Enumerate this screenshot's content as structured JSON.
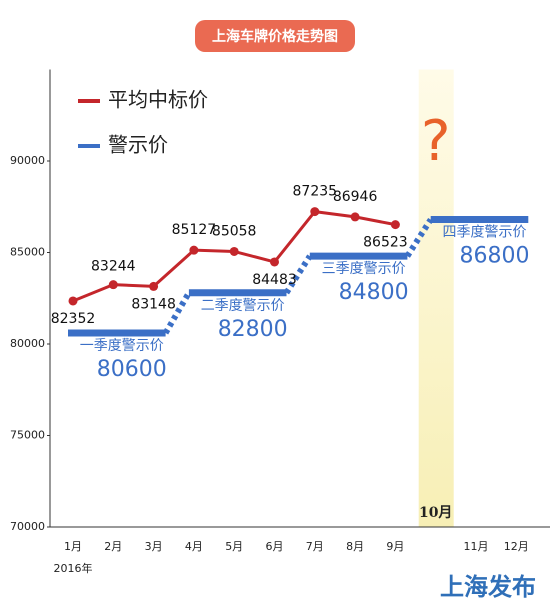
{
  "chart_data": {
    "type": "line",
    "title": "上海车牌价格走势图",
    "categories": [
      "1月",
      "2月",
      "3月",
      "4月",
      "5月",
      "6月",
      "7月",
      "8月",
      "9月",
      "10月",
      "11月",
      "12月"
    ],
    "year_label": "2016年",
    "series": [
      {
        "name": "平均中标价",
        "color": "#c4262b",
        "values": [
          82352,
          83244,
          83148,
          85127,
          85058,
          84483,
          87235,
          86946,
          86523,
          null,
          null,
          null
        ]
      },
      {
        "name": "警示价",
        "color": "#3b6fc6",
        "values": [
          80600,
          80600,
          80600,
          82800,
          82800,
          82800,
          84800,
          84800,
          84800,
          86800,
          86800,
          86800
        ]
      }
    ],
    "quarter_labels": [
      "一季度警示价",
      "二季度警示价",
      "三季度警示价",
      "四季度警示价"
    ],
    "highlight_category": 9,
    "annotation": "?",
    "source": "上海发布",
    "ylim": [
      70000,
      95000
    ],
    "yticks": [
      70000,
      75000,
      80000,
      85000,
      90000
    ]
  }
}
